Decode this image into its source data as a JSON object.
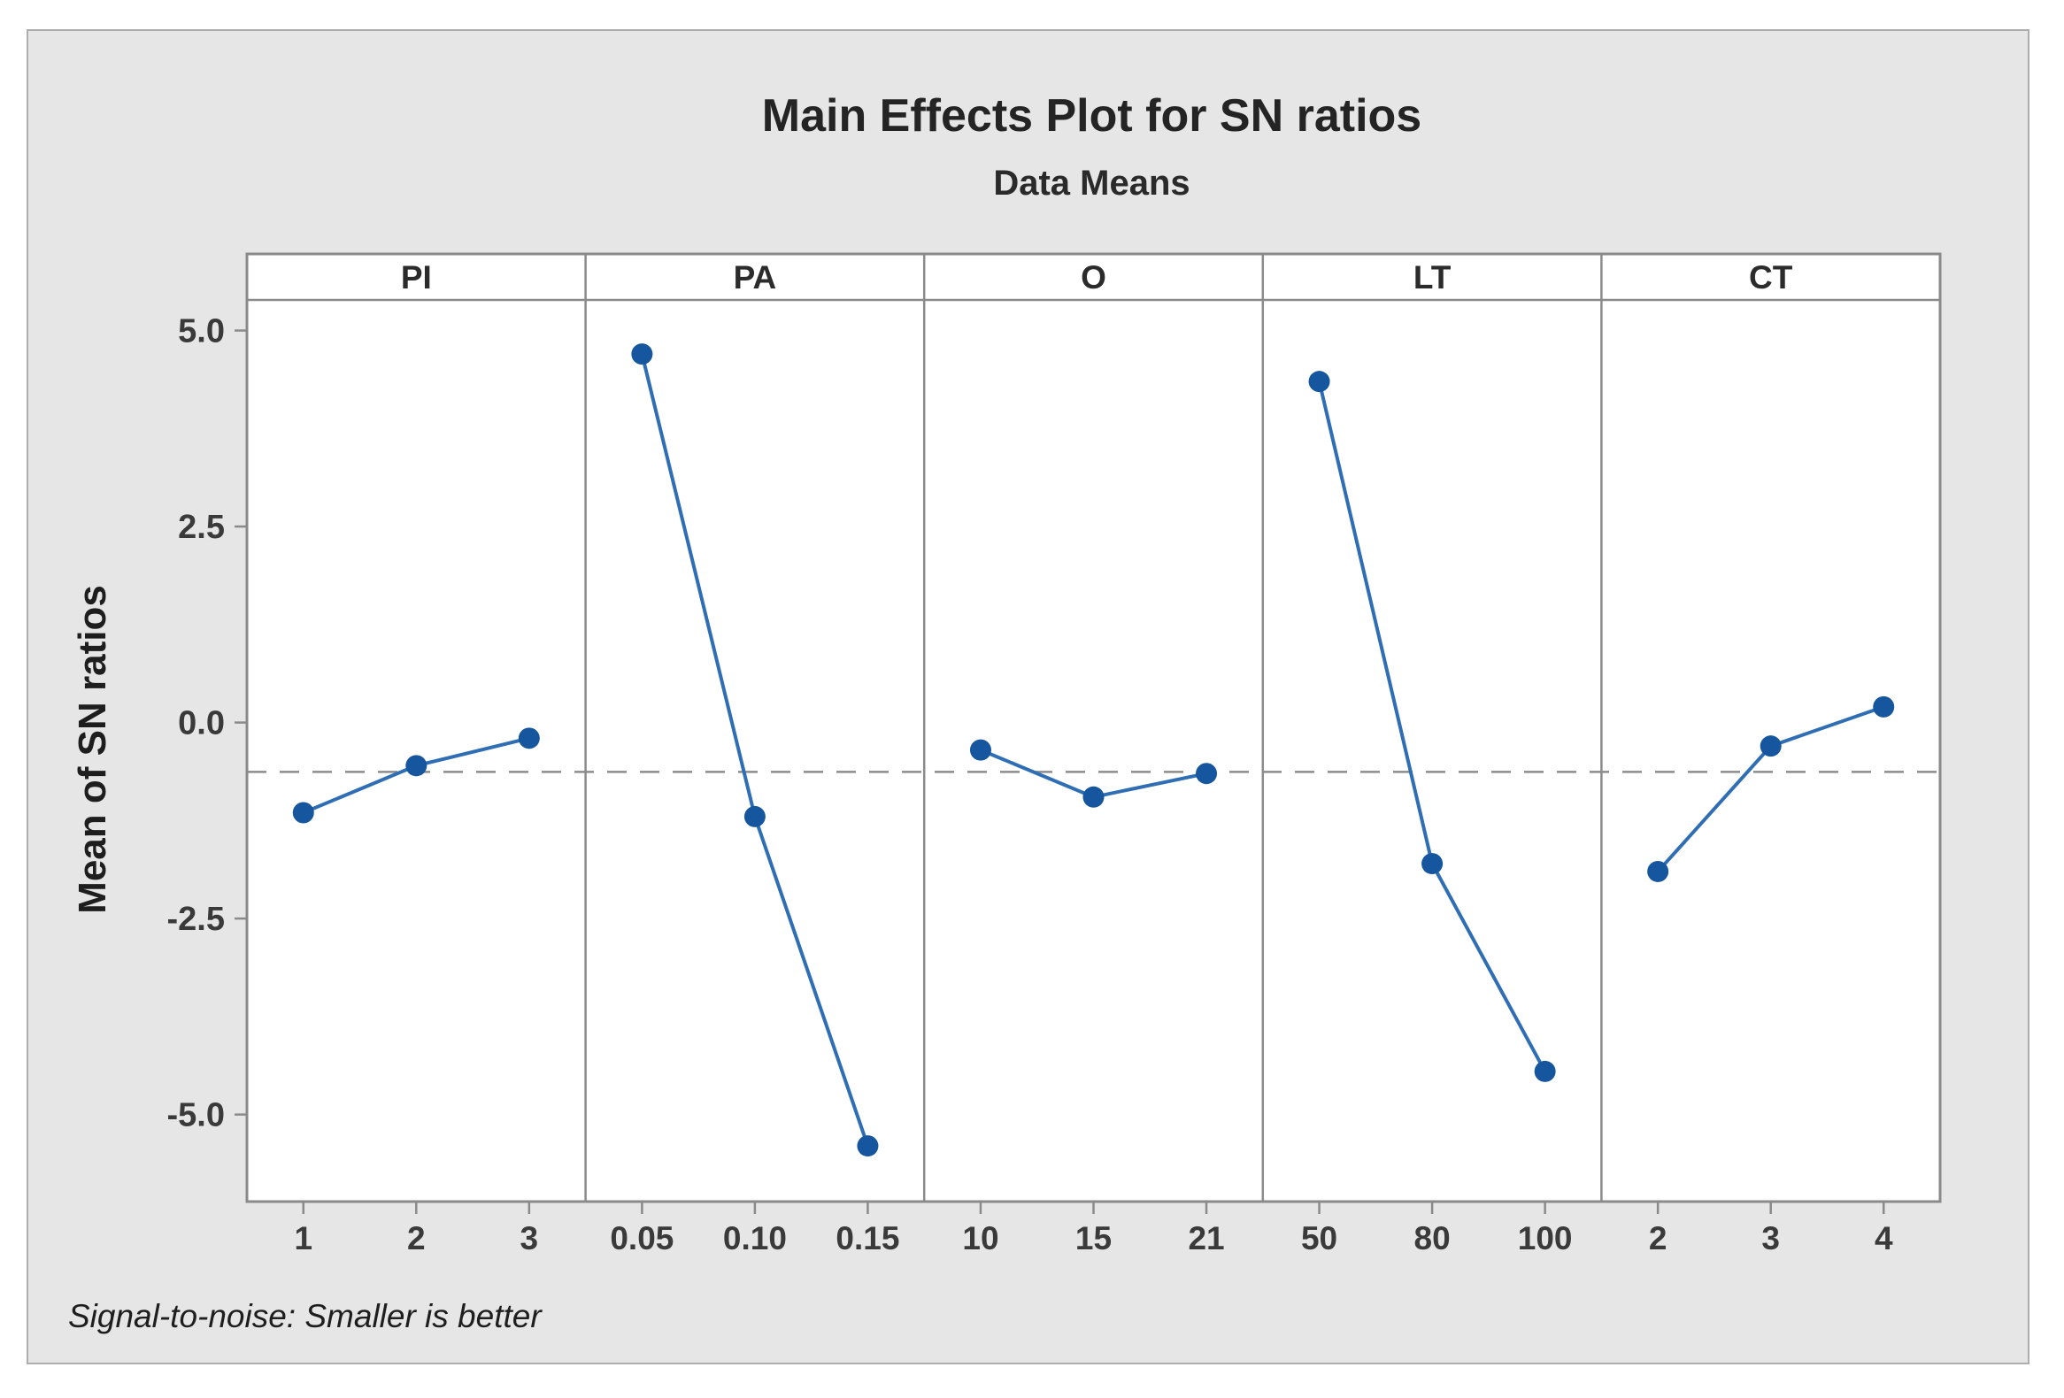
{
  "window": {
    "background": "#ffffff",
    "canvas_background": "#e6e6e6",
    "canvas_border": "#adadad"
  },
  "chart_data": {
    "type": "line",
    "title": "Main Effects Plot for SN ratios",
    "subtitle": "Data Means",
    "ylabel": "Mean of SN ratios",
    "footnote": "Signal-to-noise: Smaller is better",
    "panels": [
      {
        "factor": "PI",
        "levels": [
          "1",
          "2",
          "3"
        ],
        "means": [
          -1.15,
          -0.55,
          -0.2
        ]
      },
      {
        "factor": "PA",
        "levels": [
          "0.05",
          "0.10",
          "0.15"
        ],
        "means": [
          4.7,
          -1.2,
          -5.4
        ]
      },
      {
        "factor": "O",
        "levels": [
          "10",
          "15",
          "21"
        ],
        "means": [
          -0.35,
          -0.95,
          -0.65
        ]
      },
      {
        "factor": "LT",
        "levels": [
          "50",
          "80",
          "100"
        ],
        "means": [
          4.35,
          -1.8,
          -4.45
        ]
      },
      {
        "factor": "CT",
        "levels": [
          "2",
          "3",
          "4"
        ],
        "means": [
          -1.9,
          -0.3,
          0.2
        ]
      }
    ],
    "yticks": [
      {
        "label": "5.0",
        "value": 5.0
      },
      {
        "label": "2.5",
        "value": 2.5
      },
      {
        "label": "0.0",
        "value": 0.0
      },
      {
        "label": "-2.5",
        "value": -2.5
      },
      {
        "label": "-5.0",
        "value": -5.0
      }
    ],
    "ylim": [
      -6.11,
      5.39
    ],
    "reference_line_value": -0.63,
    "grid": "off",
    "legend": "none",
    "colors": {
      "line": "#2f6eb4",
      "marker": "#16569e",
      "reference_line": "#8c8c8c",
      "frame": "#8a8a8a",
      "plot_background": "#ffffff",
      "tick_text": "#3a3a3a",
      "header_text": "#2b2b2b"
    }
  }
}
